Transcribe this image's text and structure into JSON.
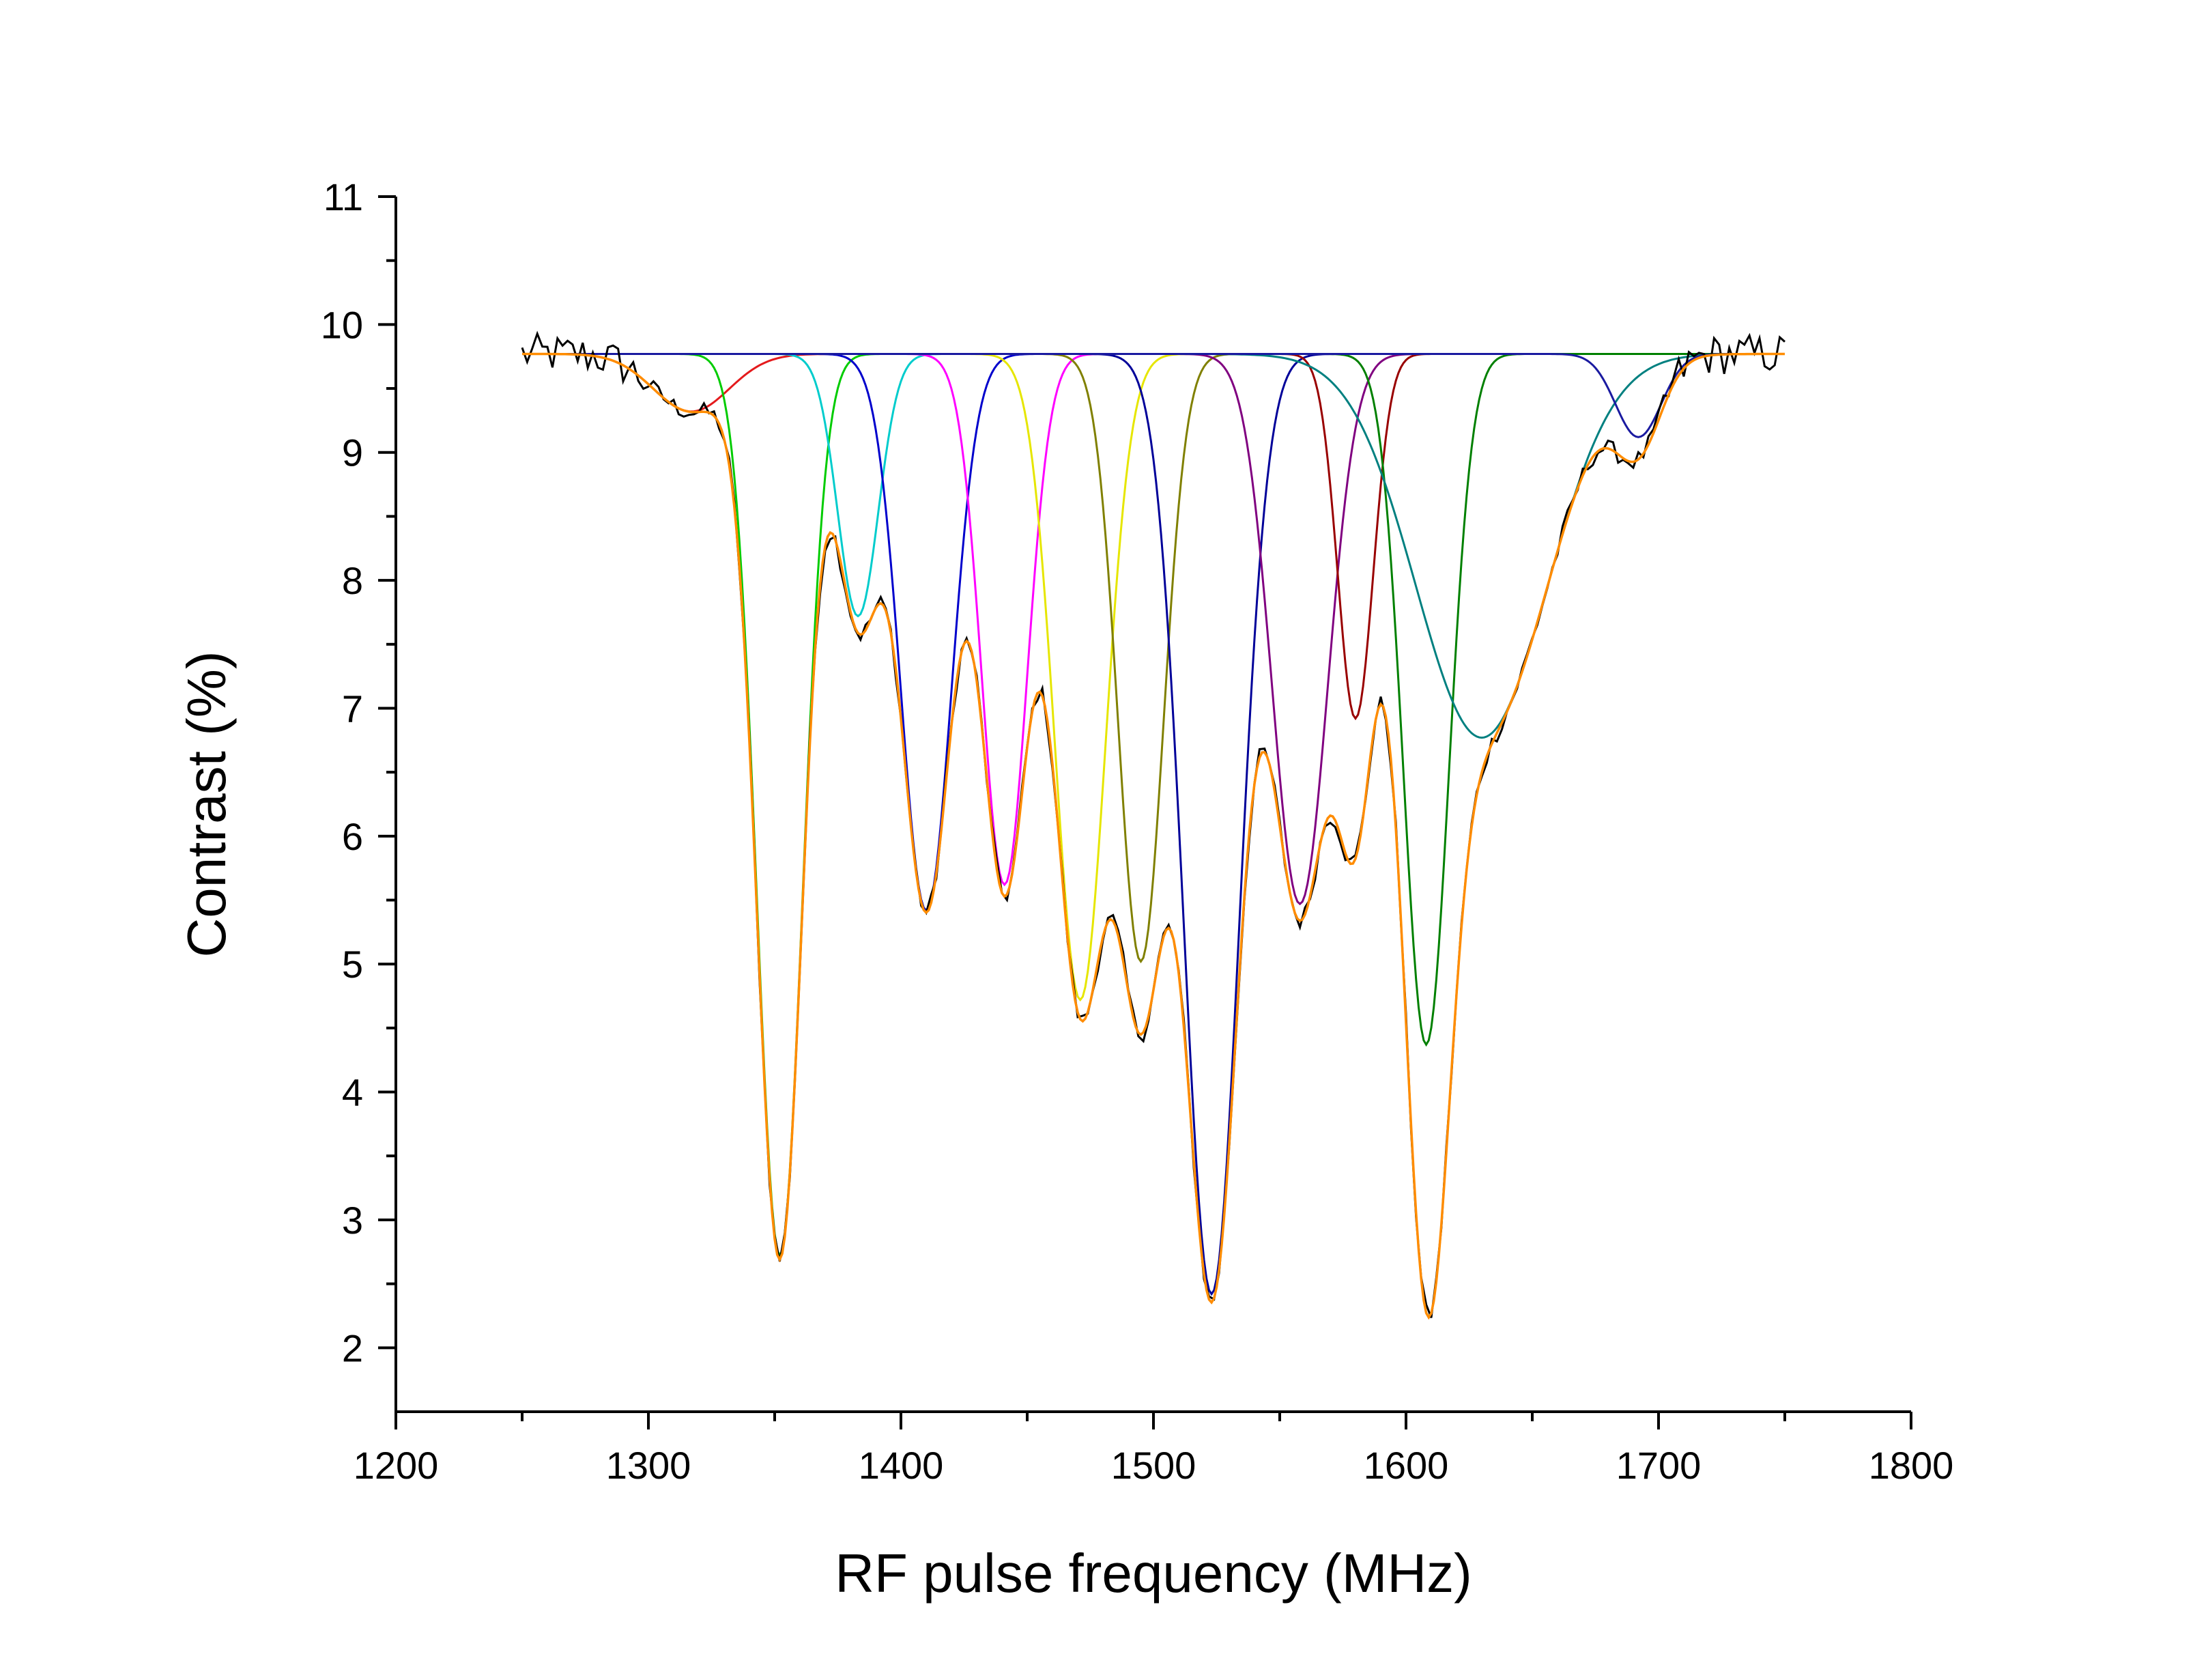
{
  "chart_data": {
    "type": "line",
    "title": "",
    "xlabel": "RF pulse frequency (MHz)",
    "ylabel": "Contrast (%)",
    "xlim": [
      1200,
      1800
    ],
    "ylim": [
      1.5,
      11
    ],
    "x_ticks": [
      "1200",
      "1300",
      "1400",
      "1500",
      "1600",
      "1700",
      "1800"
    ],
    "y_ticks": [
      "2",
      "3",
      "4",
      "5",
      "6",
      "7",
      "8",
      "9",
      "10",
      "11"
    ],
    "grid": false,
    "legend": "none",
    "baseline": 9.77,
    "x_range": [
      1250,
      1750
    ],
    "fit_color": "#ff8c00",
    "data_color": "#000000",
    "components": [
      {
        "center": 1317,
        "depth": 0.45,
        "width": 15,
        "color": "#e41a1c"
      },
      {
        "center": 1352,
        "depth": 7.05,
        "width": 9,
        "color": "#00cc00"
      },
      {
        "center": 1383,
        "depth": 2.05,
        "width": 8,
        "color": "#00cccc"
      },
      {
        "center": 1410,
        "depth": 4.35,
        "width": 10,
        "color": "#0000cc"
      },
      {
        "center": 1441,
        "depth": 4.15,
        "width": 9,
        "color": "#ff00ff"
      },
      {
        "center": 1471,
        "depth": 5.05,
        "width": 10,
        "color": "#e6e600"
      },
      {
        "center": 1495,
        "depth": 4.75,
        "width": 9,
        "color": "#808000"
      },
      {
        "center": 1523,
        "depth": 7.35,
        "width": 11,
        "color": "#000099"
      },
      {
        "center": 1558,
        "depth": 4.3,
        "width": 11,
        "color": "#800080"
      },
      {
        "center": 1580,
        "depth": 2.85,
        "width": 7,
        "color": "#990000"
      },
      {
        "center": 1608,
        "depth": 5.4,
        "width": 9,
        "color": "#008000"
      },
      {
        "center": 1630,
        "depth": 3.0,
        "width": 26,
        "color": "#008080"
      },
      {
        "center": 1692,
        "depth": 0.65,
        "width": 9,
        "color": "#1a1aa0"
      }
    ]
  }
}
